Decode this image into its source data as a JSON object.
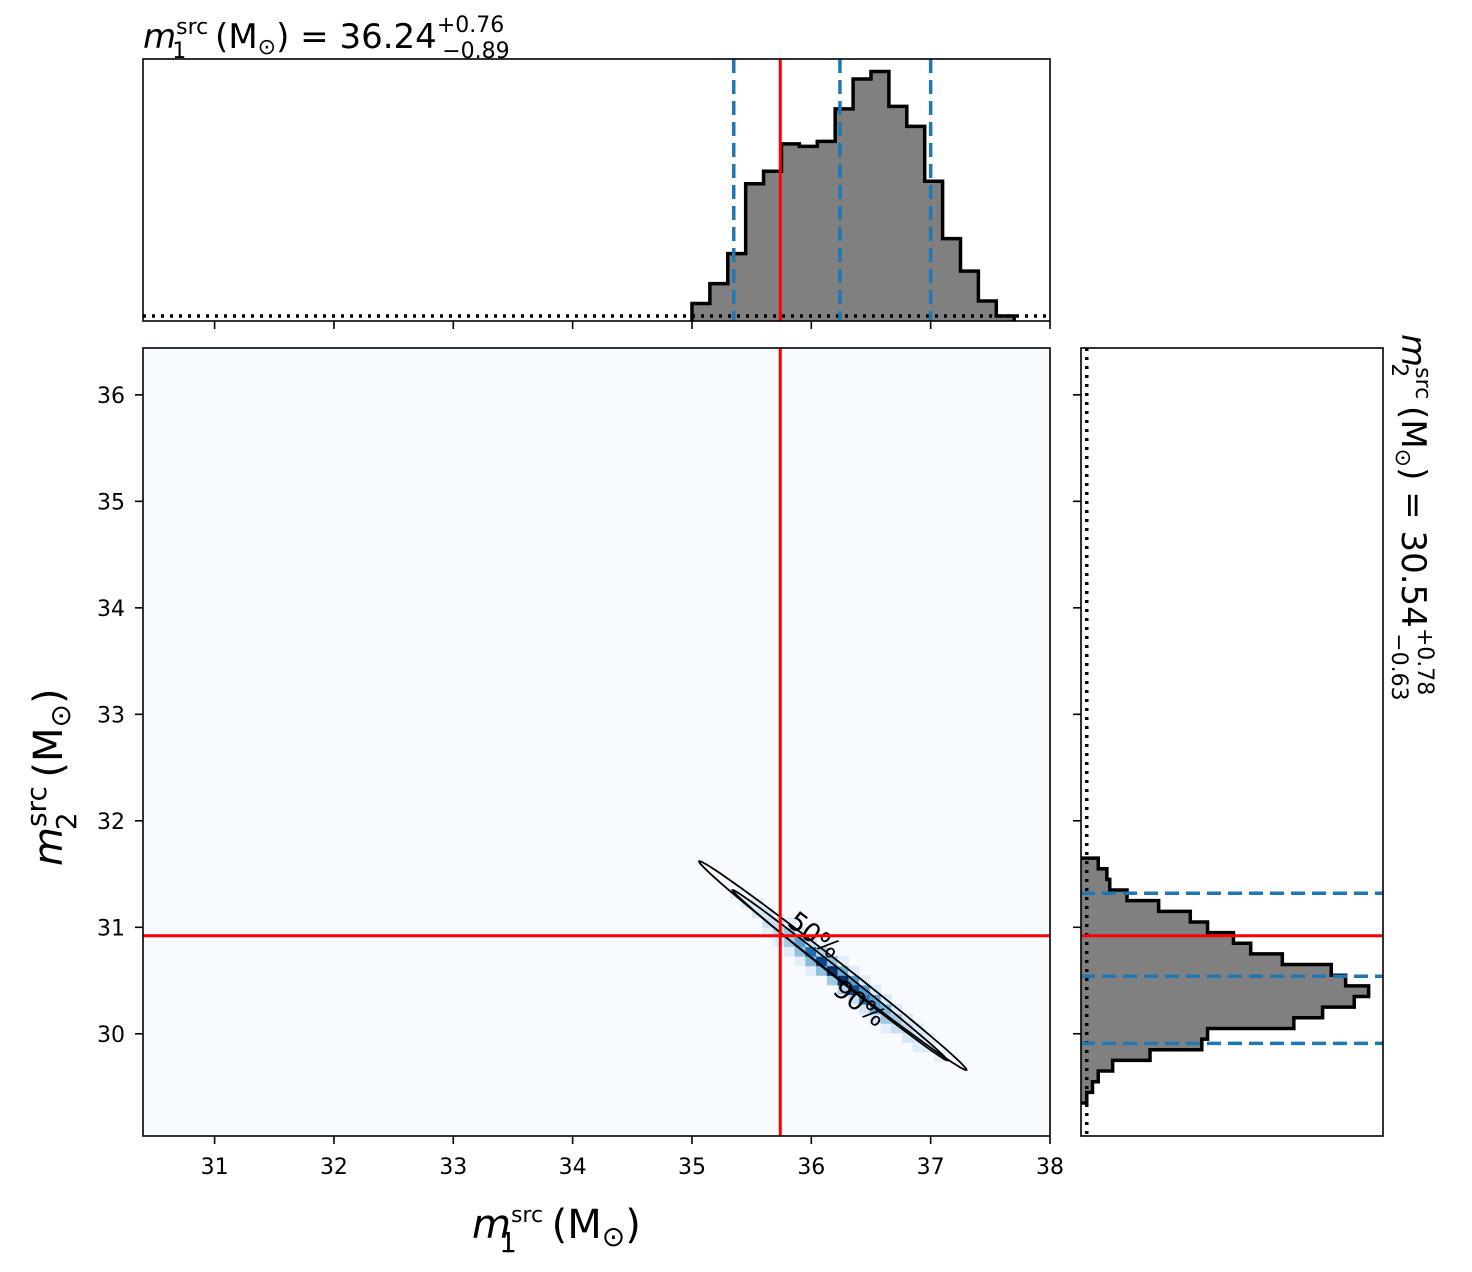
{
  "chart_data": [
    {
      "type": "heatmap",
      "name": "joint posterior",
      "xlabel": {
        "symbol": "m",
        "sup": "src",
        "sub": "1",
        "unit": " (M",
        "sun": "⊙",
        "close": ")"
      },
      "ylabel": {
        "symbol": "m",
        "sup": "src",
        "sub": "2",
        "unit": " (M",
        "sun": "⊙",
        "close": ")"
      },
      "xlim": [
        30.4,
        38.0
      ],
      "ylim": [
        29.04,
        36.44
      ],
      "xticks": [
        "31",
        "32",
        "33",
        "34",
        "35",
        "36",
        "37",
        "38"
      ],
      "yticks": [
        "30",
        "31",
        "32",
        "33",
        "34",
        "35",
        "36"
      ],
      "colormap": "Blues",
      "background": "#f7fbff",
      "posterior": {
        "mean": [
          36.24,
          30.54
        ],
        "sigma_along": 0.42,
        "sigma_perp": 0.045,
        "direction": [
          1.0,
          -0.9
        ]
      },
      "contours": [
        {
          "level": "50%",
          "center": [
            36.24,
            30.55
          ],
          "major": [
            -0.9,
            0.8
          ],
          "minor": 0.04
        },
        {
          "level": "90%",
          "center": [
            36.18,
            30.64
          ],
          "major": [
            -1.12,
            0.98
          ],
          "minor": 0.06
        }
      ],
      "contour_labels": [
        "50%",
        "90%"
      ],
      "truth": {
        "x": 35.74,
        "y": 30.92,
        "color": "#ff0000"
      }
    },
    {
      "type": "bar",
      "name": "m1 marginal",
      "title": {
        "symbol": "m",
        "sup": "src",
        "sub": "1",
        "unit": " (M",
        "sun": "⊙",
        "close": ") = 36.24",
        "plus": "+0.76",
        "minus": "−0.89"
      },
      "bin_edges": [
        35.0,
        35.15,
        35.3,
        35.45,
        35.6,
        35.75,
        35.9,
        36.05,
        36.2,
        36.35,
        36.5,
        36.65,
        36.8,
        36.95,
        37.1,
        37.25,
        37.4,
        37.55,
        37.7
      ],
      "values": [
        0.07,
        0.15,
        0.27,
        0.55,
        0.6,
        0.71,
        0.7,
        0.72,
        0.85,
        0.97,
        1.0,
        0.86,
        0.78,
        0.56,
        0.33,
        0.2,
        0.08,
        0.02
      ],
      "prior_level": 0.02,
      "quantiles": [
        35.35,
        36.24,
        37.0
      ],
      "truth": 35.74,
      "ylim": [
        0,
        1.05
      ]
    },
    {
      "type": "bar",
      "name": "m2 marginal",
      "orientation": "horizontal",
      "title": {
        "symbol": "m",
        "sup": "src",
        "sub": "2",
        "unit": " (M",
        "sun": "⊙",
        "close": ") = 30.54",
        "plus": "+0.78",
        "minus": "−0.63"
      },
      "bin_edges": [
        29.35,
        29.45,
        29.55,
        29.65,
        29.75,
        29.85,
        29.95,
        30.05,
        30.15,
        30.25,
        30.35,
        30.45,
        30.55,
        30.65,
        30.75,
        30.85,
        30.95,
        31.05,
        31.15,
        31.25,
        31.35,
        31.45,
        31.55,
        31.65
      ],
      "values": [
        0.02,
        0.04,
        0.06,
        0.11,
        0.24,
        0.42,
        0.44,
        0.74,
        0.84,
        0.95,
        1.0,
        0.92,
        0.87,
        0.7,
        0.59,
        0.53,
        0.44,
        0.38,
        0.27,
        0.16,
        0.1,
        0.09,
        0.06
      ],
      "prior_level": 0.02,
      "quantiles": [
        29.91,
        30.54,
        31.32
      ],
      "truth": 30.92,
      "xlim": [
        0,
        1.05
      ]
    }
  ],
  "colors": {
    "hist_fill": "#808080",
    "hist_edge": "#000000",
    "quantile": "#1f77b4",
    "truth": "#ff0000"
  }
}
